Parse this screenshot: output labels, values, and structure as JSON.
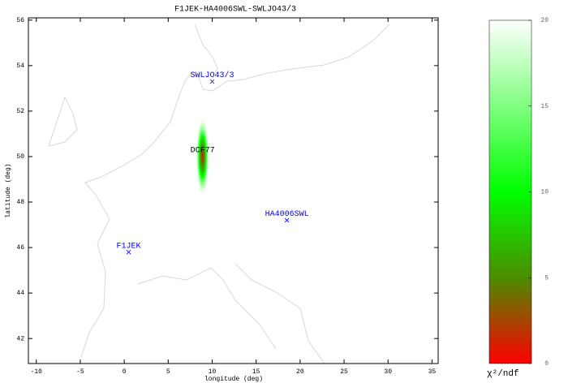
{
  "chart_data": {
    "type": "scatter",
    "title": "F1JEK-HA4006SWL-SWLJO43/3",
    "x_label": "longitude (deg)",
    "y_label": "latitude (deg)",
    "xlim": [
      -10.9,
      35.7
    ],
    "xticks": [
      -10,
      -5,
      0,
      5,
      10,
      15,
      20,
      25,
      30,
      35
    ],
    "ylim": [
      40.9,
      56.1
    ],
    "yticks": [
      42,
      44,
      46,
      48,
      50,
      52,
      54,
      56
    ],
    "points": [
      {
        "name": "F1JEK",
        "x": 0.5,
        "y": 45.8,
        "color": "#0000ff"
      },
      {
        "name": "HA4006SWL",
        "x": 18.5,
        "y": 47.2,
        "color": "#0000ff"
      },
      {
        "name": "SWLJO43/3",
        "x": 10.0,
        "y": 53.3,
        "color": "#0000ff"
      },
      {
        "name": "DCF77",
        "x": 8.9,
        "y": 50.0,
        "color": "#000000"
      }
    ],
    "fit_region": {
      "x": 8.9,
      "y": 50.0,
      "x_halfwidth": 0.8,
      "y_halfwidth": 1.8
    },
    "colorbar": {
      "label": "χ²/ndf",
      "zlim": [
        0,
        20
      ],
      "zticks": [
        0,
        5,
        10,
        15,
        20
      ],
      "colorscale": [
        {
          "value": 0,
          "color": "#ff0000"
        },
        {
          "value": 5,
          "color": "#4c8c00"
        },
        {
          "value": 10,
          "color": "#00ff00"
        },
        {
          "value": 20,
          "color": "#ffffff"
        }
      ]
    }
  }
}
